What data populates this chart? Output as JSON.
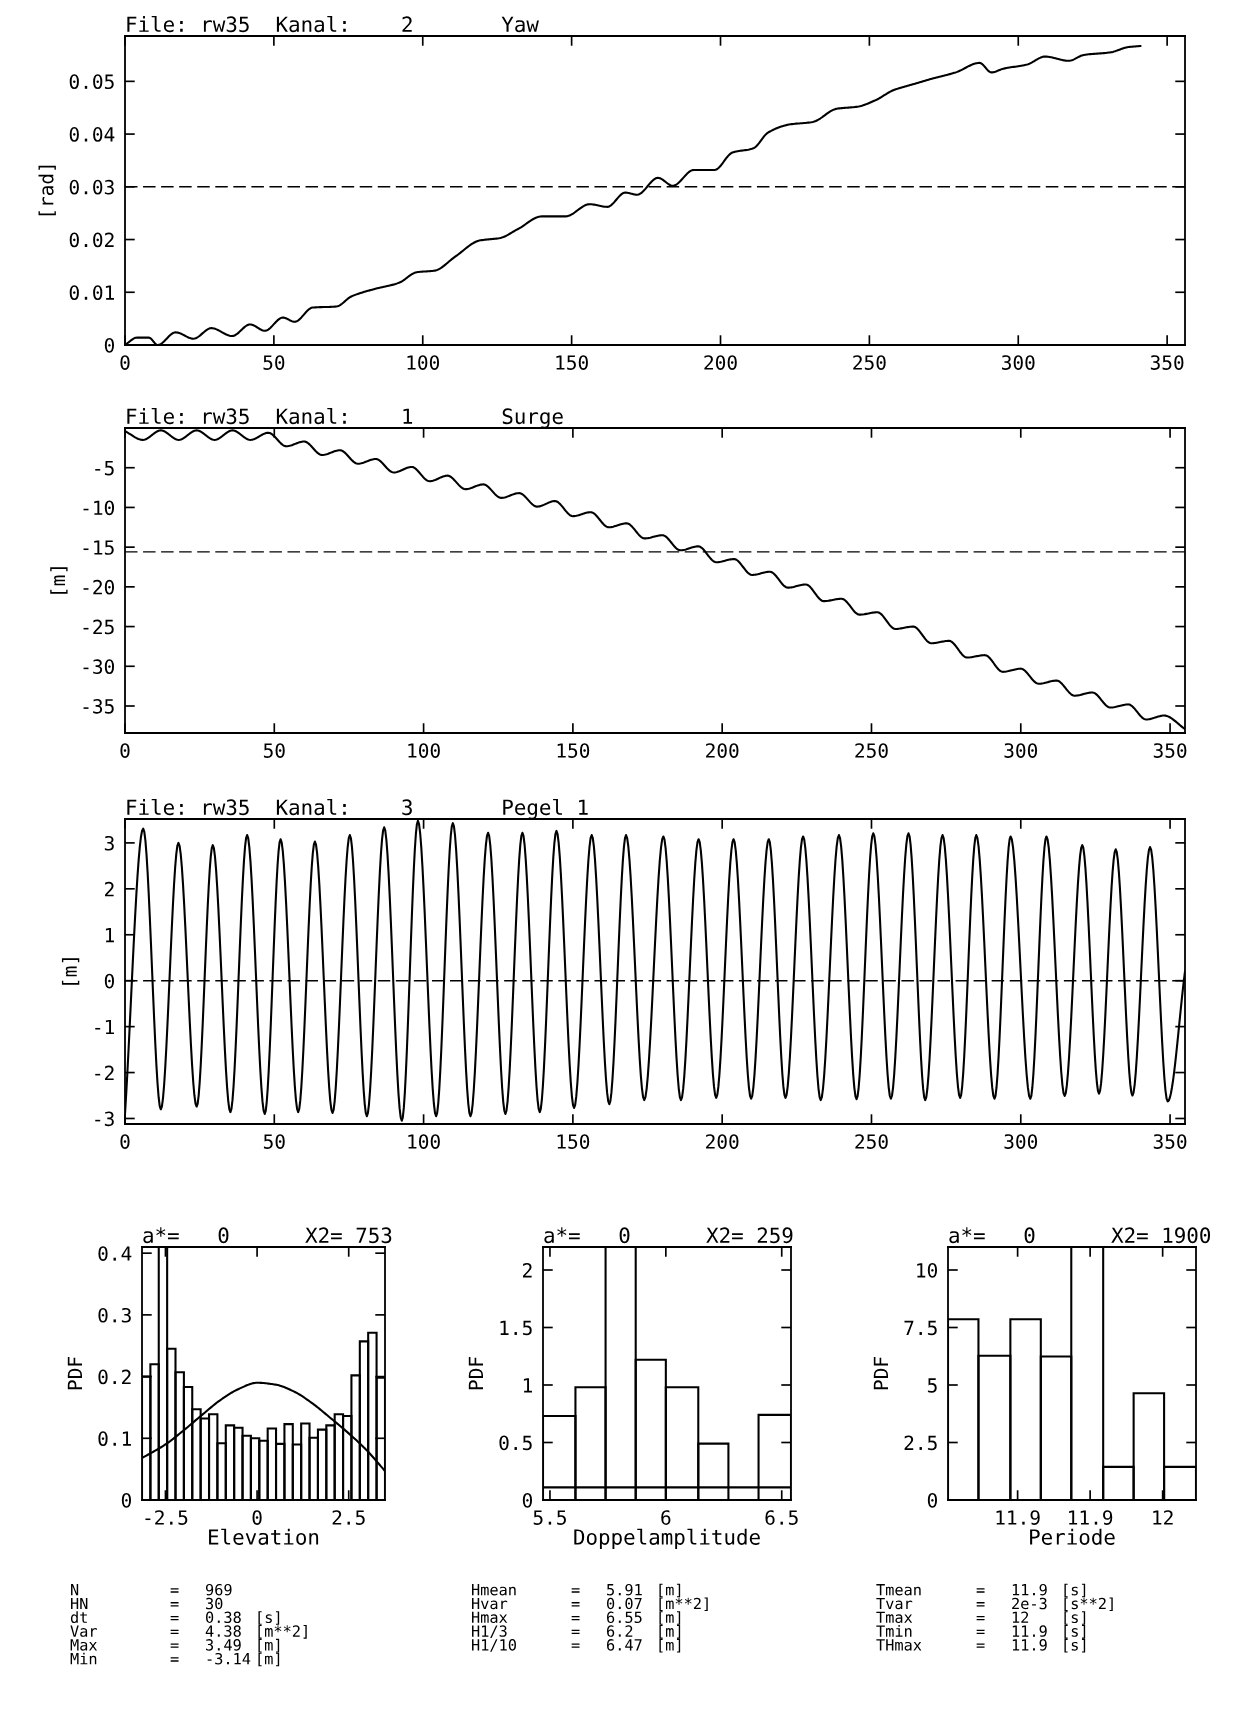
{
  "chart_data": [
    {
      "type": "line",
      "title": "File: rw35  Kanal:    2       Yaw",
      "ylabel": "[rad]",
      "color": "#000000",
      "x": [
        0,
        4,
        8,
        11,
        17,
        23,
        29,
        36,
        42,
        47,
        53,
        57,
        63,
        71,
        76,
        83,
        92,
        98,
        104,
        111,
        119,
        126,
        132,
        140,
        148,
        156,
        162,
        168,
        172,
        179,
        184,
        191,
        198,
        204,
        211,
        216,
        223,
        231,
        239,
        246,
        252,
        258,
        265,
        271,
        279,
        287,
        291,
        295,
        303,
        309,
        317,
        322,
        331,
        337,
        341
      ],
      "values": [
        0,
        0.0014,
        0.0014,
        0,
        0.0024,
        0.0012,
        0.0032,
        0.0017,
        0.0039,
        0.0027,
        0.0052,
        0.0044,
        0.0071,
        0.0073,
        0.0092,
        0.0105,
        0.0118,
        0.0138,
        0.0141,
        0.0168,
        0.0198,
        0.0203,
        0.022,
        0.0244,
        0.0244,
        0.0267,
        0.0262,
        0.0289,
        0.0285,
        0.0317,
        0.0302,
        0.0332,
        0.0332,
        0.0365,
        0.0373,
        0.0403,
        0.0418,
        0.0423,
        0.0448,
        0.0452,
        0.0464,
        0.0483,
        0.0495,
        0.0505,
        0.0517,
        0.0535,
        0.0517,
        0.0524,
        0.0532,
        0.0547,
        0.0539,
        0.055,
        0.0555,
        0.0565,
        0.0567
      ],
      "xlim": [
        0,
        356
      ],
      "xticks": [
        0,
        50,
        100,
        150,
        200,
        250,
        300,
        350
      ],
      "ylim": [
        0,
        0.0586
      ],
      "yticks": [
        0,
        0.01,
        0.02,
        0.03,
        0.04,
        0.05
      ],
      "ref_lines": [
        {
          "axis": "y",
          "value": 0.03,
          "line_style": "dashed",
          "color": "#000000"
        }
      ]
    },
    {
      "type": "line",
      "title": "File: rw35  Kanal:    1       Surge",
      "ylabel": "[m]",
      "color": "#000000",
      "x": [
        0,
        6,
        12,
        18,
        24,
        30,
        36,
        42,
        48,
        54,
        60,
        66,
        72,
        78,
        84,
        90,
        96,
        102,
        108,
        114,
        120,
        126,
        132,
        138,
        144,
        150,
        156,
        162,
        168,
        174,
        180,
        186,
        192,
        198,
        204,
        210,
        216,
        222,
        228,
        234,
        240,
        246,
        252,
        258,
        264,
        270,
        276,
        282,
        288,
        294,
        300,
        306,
        312,
        318,
        324,
        330,
        336,
        342,
        348,
        355
      ],
      "values": [
        -0.4,
        -1.5,
        -0.3,
        -1.5,
        -0.3,
        -1.5,
        -0.3,
        -1.5,
        -0.6,
        -2.3,
        -1.7,
        -3.4,
        -2.8,
        -4.5,
        -3.9,
        -5.6,
        -4.9,
        -6.7,
        -6.0,
        -7.7,
        -7.1,
        -8.8,
        -8.2,
        -9.9,
        -9.2,
        -11.1,
        -10.6,
        -12.5,
        -12.0,
        -13.9,
        -13.5,
        -15.4,
        -14.9,
        -16.9,
        -16.5,
        -18.5,
        -18.1,
        -20.1,
        -19.7,
        -21.8,
        -21.5,
        -23.5,
        -23.2,
        -25.3,
        -25.0,
        -27.1,
        -26.8,
        -28.9,
        -28.6,
        -30.7,
        -30.3,
        -32.2,
        -31.8,
        -33.7,
        -33.3,
        -35.2,
        -34.8,
        -36.7,
        -36.2,
        -37.9
      ],
      "xlim": [
        0,
        355
      ],
      "xticks": [
        0,
        50,
        100,
        150,
        200,
        250,
        300,
        350
      ],
      "ylim": [
        -38.4,
        0
      ],
      "yticks": [
        -35,
        -30,
        -25,
        -20,
        -15,
        -10,
        -5
      ],
      "ref_lines": [
        {
          "axis": "y",
          "value": -15.6,
          "line_style": "dashed",
          "color": "#000000"
        }
      ]
    },
    {
      "type": "line",
      "title": "File: rw35  Kanal:    3       Pegel 1",
      "ylabel": "[m]",
      "color": "#000000",
      "x": [
        0,
        6.1,
        12.0,
        17.9,
        24.0,
        29.4,
        35.3,
        40.9,
        46.8,
        52.1,
        58.0,
        63.6,
        69.5,
        75.3,
        81.0,
        86.8,
        92.7,
        98.1,
        104.2,
        109.8,
        115.7,
        121.6,
        127.4,
        133.1,
        138.9,
        144.5,
        150.4,
        156.3,
        162.2,
        167.8,
        173.9,
        180.3,
        186.2,
        192.1,
        198.0,
        203.8,
        209.7,
        215.6,
        221.2,
        227.1,
        233.0,
        239.1,
        245.0,
        250.6,
        256.5,
        262.4,
        268.0,
        273.8,
        279.7,
        285.1,
        291.2,
        296.6,
        303.2,
        308.6,
        314.7,
        320.6,
        326.2,
        331.8,
        337.4,
        343.3,
        349.2,
        355
      ],
      "values": [
        -2.9,
        3.31,
        -2.8,
        3.0,
        -2.74,
        2.95,
        -2.86,
        3.17,
        -2.9,
        3.08,
        -2.86,
        3.03,
        -2.88,
        3.17,
        -2.95,
        3.34,
        -3.05,
        3.48,
        -2.95,
        3.43,
        -2.95,
        3.22,
        -2.9,
        3.22,
        -2.86,
        3.26,
        -2.77,
        3.17,
        -2.69,
        3.17,
        -2.6,
        3.14,
        -2.6,
        3.08,
        -2.55,
        3.08,
        -2.57,
        3.08,
        -2.55,
        3.14,
        -2.6,
        3.17,
        -2.58,
        3.21,
        -2.57,
        3.21,
        -2.6,
        3.17,
        -2.55,
        3.17,
        -2.57,
        3.14,
        -2.57,
        3.14,
        -2.51,
        2.95,
        -2.46,
        2.86,
        -2.5,
        2.91,
        -2.63,
        0.2
      ],
      "xlim": [
        0,
        355
      ],
      "xticks": [
        0,
        50,
        100,
        150,
        200,
        250,
        300,
        350
      ],
      "ylim": [
        -3.12,
        3.52
      ],
      "yticks": [
        -3,
        -2,
        -1,
        0,
        1,
        2,
        3
      ],
      "ref_lines": [
        {
          "axis": "y",
          "value": 0,
          "line_style": "dashed",
          "color": "#000000"
        }
      ]
    },
    {
      "type": "histogram",
      "title": "a*=   0      X2= 753",
      "xlabel": "Elevation",
      "ylabel": "PDF",
      "color": "#000000",
      "bins": [
        -3.14,
        -2.911,
        -2.683,
        -2.454,
        -2.226,
        -1.997,
        -1.769,
        -1.54,
        -1.311,
        -1.083,
        -0.854,
        -0.626,
        -0.397,
        -0.169,
        0.06,
        0.289,
        0.517,
        0.746,
        0.974,
        1.203,
        1.431,
        1.66,
        1.889,
        2.117,
        2.346,
        2.574,
        2.803,
        3.031,
        3.26,
        3.49
      ],
      "values": [
        0.2,
        0.22,
        0.41,
        0.245,
        0.207,
        0.183,
        0.147,
        0.132,
        0.139,
        0.092,
        0.121,
        0.117,
        0.104,
        0.1,
        0.096,
        0.116,
        0.091,
        0.123,
        0.09,
        0.124,
        0.101,
        0.114,
        0.121,
        0.139,
        0.136,
        0.202,
        0.257,
        0.271,
        0.198
      ],
      "series": [
        {
          "type": "line",
          "color": "#000000",
          "x": [
            -3.14,
            -2.5,
            -2,
            -1.5,
            -1,
            -0.5,
            0,
            0.5,
            1,
            1.5,
            2,
            2.5,
            3,
            3.49
          ],
          "values": [
            0.068,
            0.09,
            0.113,
            0.138,
            0.162,
            0.18,
            0.19,
            0.187,
            0.176,
            0.157,
            0.133,
            0.108,
            0.08,
            0.047
          ]
        }
      ],
      "xlim": [
        -3.14,
        3.49
      ],
      "xticks": [
        -2.5,
        0,
        2.5
      ],
      "ylim": [
        0,
        0.41
      ],
      "yticks": [
        0,
        0.1,
        0.2,
        0.3,
        0.4
      ],
      "annotations": [
        "N = 969",
        "HN = 30",
        "dt = 0.38 [s]",
        "Var = 4.38 [m**2]",
        "Max = 3.49 [m]",
        "Min = -3.14 [m]"
      ]
    },
    {
      "type": "histogram",
      "title": "a*=   0      X2= 259",
      "xlabel": "Doppelamplitude",
      "ylabel": "PDF",
      "color": "#000000",
      "bins": [
        5.47,
        5.61,
        5.74,
        5.87,
        6.0,
        6.14,
        6.27,
        6.4,
        6.54
      ],
      "values": [
        0.73,
        0.98,
        2.2,
        1.22,
        0.98,
        0.49,
        0,
        0.74
      ],
      "series": [
        {
          "type": "line",
          "color": "#000000",
          "x": [
            5.47,
            6.54
          ],
          "values": [
            0.11,
            0.11
          ]
        }
      ],
      "xlim": [
        5.47,
        6.54
      ],
      "xticks": [
        5.5,
        6,
        6.5
      ],
      "ylim": [
        0,
        2.2
      ],
      "yticks": [
        0,
        0.5,
        1,
        1.5,
        2
      ],
      "annotations": [
        "Hmean = 5.91 [m]",
        "Hvar = 0.07 [m**2]",
        "Hmax = 6.55 [m]",
        "H1/3 = 6.2 [m]",
        "H1/10 = 6.47 [m]"
      ]
    },
    {
      "type": "histogram",
      "title": "a*=   0      X2= 1900",
      "xlabel": "Periode",
      "ylabel": "PDF",
      "color": "#000000",
      "bins": [
        11.852,
        11.873,
        11.895,
        11.916,
        11.937,
        11.959,
        11.98,
        12.001,
        12.023
      ],
      "values": [
        7.86,
        6.27,
        7.86,
        6.24,
        11,
        1.44,
        4.64,
        1.44
      ],
      "xlim": [
        11.852,
        12.023
      ],
      "xticks": [
        {
          "value": 11.9,
          "label": "11.9"
        },
        {
          "value": 11.95,
          "label": "11.9"
        },
        {
          "value": 12,
          "label": "12"
        }
      ],
      "ylim": [
        0,
        11
      ],
      "yticks": [
        0,
        2.5,
        5,
        7.5,
        10
      ],
      "annotations": [
        "Tmean = 11.9 [s]",
        "Tvar = 2e-3 [s**2]",
        "Tmax = 12 [s]",
        "Tmin = 11.9 [s]",
        "THmax = 11.9 [s]"
      ]
    }
  ]
}
